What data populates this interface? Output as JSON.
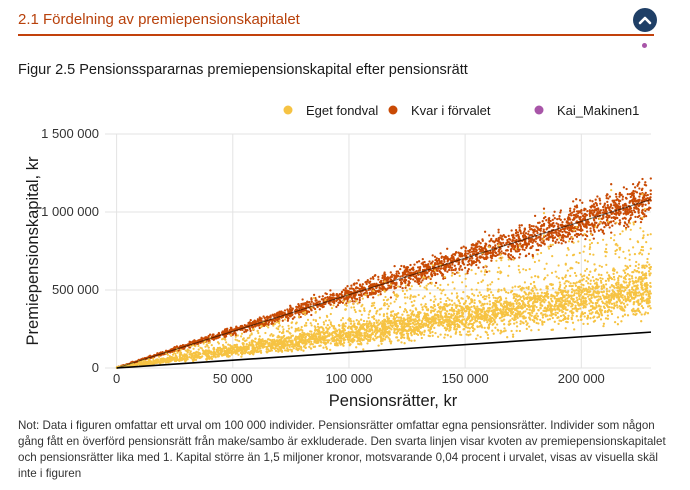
{
  "page": {
    "section_title": "2.1 Fördelning av premiepensionskapitalet",
    "figure_title": "Figur 2.5 Pensionsspararnas premiepensionskapital efter pensionsrätt",
    "note": "Not: Data i figuren omfattar ett urval om 100 000 individer. Pensionsrätter omfattar egna pensionsrätter. Individer som någon gång fått en överförd pensionsrätt från make/sambo är exkluderade. Den svarta linjen visar kvoten av premiepensionskapitalet och pensionsrätter lika med 1. Kapital större än 1,5 miljoner kronor, motsvarande 0,04 procent i urvalet, visas av visuella skäl inte i figuren",
    "up_button_icon": "chevron-up-icon",
    "accent_color": "#c2410c",
    "button_color": "#1f3f66",
    "marker_color": "#a855a8"
  },
  "chart_data": {
    "type": "scatter",
    "xlabel": "Pensionsrätter, kr",
    "ylabel": "Premiepensionskapital, kr",
    "xlim": [
      -5000,
      230000
    ],
    "ylim": [
      0,
      1500000
    ],
    "x_ticks": [
      0,
      50000,
      100000,
      150000,
      200000
    ],
    "x_tick_labels": [
      "0",
      "50 000",
      "100 000",
      "150 000",
      "200 000"
    ],
    "y_ticks": [
      0,
      500000,
      1000000,
      1500000
    ],
    "y_tick_labels": [
      "0",
      "500 000",
      "1 000 000",
      "1 500 000"
    ],
    "grid": true,
    "legend_position": "top-right",
    "series": [
      {
        "name": "Eget fondval",
        "color": "#f6c343",
        "description_points": [
          {
            "x": 0,
            "y": 0
          },
          {
            "x": 50000,
            "y": 90000
          },
          {
            "x": 100000,
            "y": 200000
          },
          {
            "x": 150000,
            "y": 330000
          },
          {
            "x": 200000,
            "y": 470000
          },
          {
            "x": 230000,
            "y": 560000
          }
        ]
      },
      {
        "name": "Kvar i förvalet",
        "color": "#c94a04",
        "description_points": [
          {
            "x": 0,
            "y": 0
          },
          {
            "x": 50000,
            "y": 230000
          },
          {
            "x": 100000,
            "y": 470000
          },
          {
            "x": 150000,
            "y": 710000
          },
          {
            "x": 200000,
            "y": 940000
          },
          {
            "x": 230000,
            "y": 1080000
          }
        ]
      },
      {
        "name": "Kai_Makinen1",
        "color": "#a855a8",
        "description_points": []
      }
    ],
    "reference_line": {
      "color": "#000000",
      "points": [
        {
          "x": 0,
          "y": 0
        },
        {
          "x": 230000,
          "y": 230000
        }
      ]
    },
    "trend_line": {
      "color": "#000000",
      "points": [
        {
          "x": 0,
          "y": 0
        },
        {
          "x": 230000,
          "y": 1080000
        }
      ]
    }
  }
}
